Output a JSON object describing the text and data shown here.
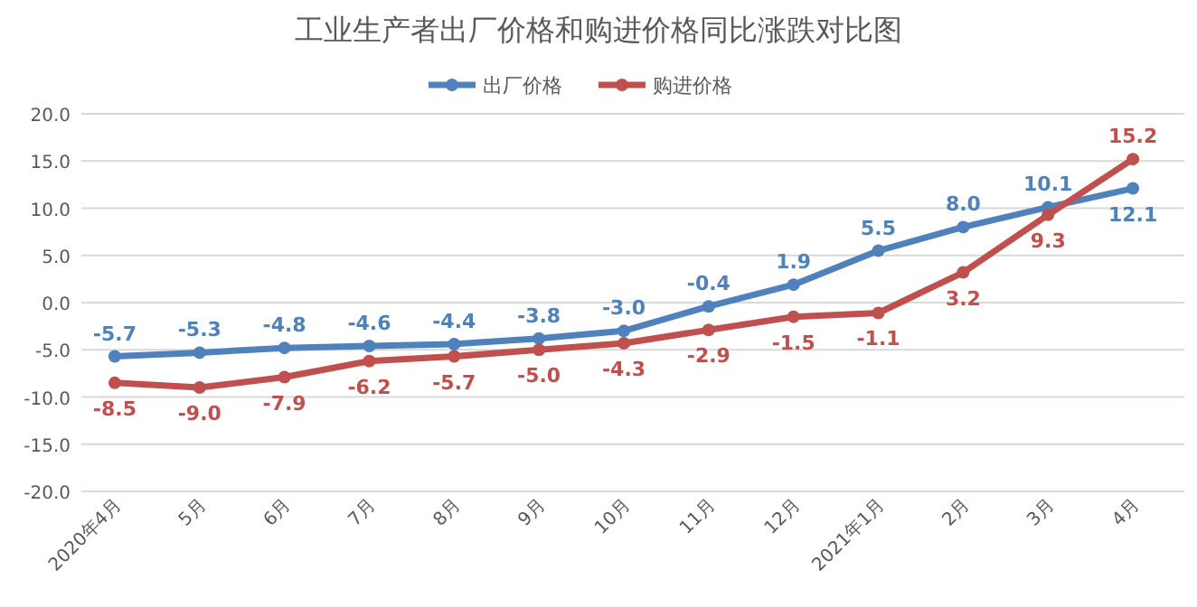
{
  "chart_data": {
    "type": "line",
    "title": "工业生产者出厂价格和购进价格同比涨跌对比图",
    "categories": [
      "2020年4月",
      "5月",
      "6月",
      "7月",
      "8月",
      "9月",
      "10月",
      "11月",
      "12月",
      "2021年1月",
      "2月",
      "3月",
      "4月"
    ],
    "series": [
      {
        "name": "出厂价格",
        "color": "#4f81bd",
        "values": [
          -5.7,
          -5.3,
          -4.8,
          -4.6,
          -4.4,
          -3.8,
          -3.0,
          -0.4,
          1.9,
          5.5,
          8.0,
          10.1,
          12.1
        ],
        "value_labels": [
          "-5.7",
          "-5.3",
          "-4.8",
          "-4.6",
          "-4.4",
          "-3.8",
          "-3.0",
          "-0.4",
          "1.9",
          "5.5",
          "8.0",
          "10.1",
          "12.1"
        ]
      },
      {
        "name": "购进价格",
        "color": "#c0504d",
        "values": [
          -8.5,
          -9.0,
          -7.9,
          -6.2,
          -5.7,
          -5.0,
          -4.3,
          -2.9,
          -1.5,
          -1.1,
          3.2,
          9.3,
          15.2
        ],
        "value_labels": [
          "-8.5",
          "-9.0",
          "-7.9",
          "-6.2",
          "-5.7",
          "-5.0",
          "-4.3",
          "-2.9",
          "-1.5",
          "-1.1",
          "3.2",
          "9.3",
          "15.2"
        ]
      }
    ],
    "ylim": [
      -20,
      20
    ],
    "yticks": [
      {
        "value": -20,
        "label": "-20.0"
      },
      {
        "value": -15,
        "label": "-15.0"
      },
      {
        "value": -10,
        "label": "-10.0"
      },
      {
        "value": -5,
        "label": "-5.0"
      },
      {
        "value": 0,
        "label": "0.0"
      },
      {
        "value": 5,
        "label": "5.0"
      },
      {
        "value": 10,
        "label": "10.0"
      },
      {
        "value": 15,
        "label": "15.0"
      },
      {
        "value": 20,
        "label": "20.0"
      }
    ],
    "grid": "y",
    "legend": "top",
    "marker": "circle",
    "line_style": "solid"
  }
}
